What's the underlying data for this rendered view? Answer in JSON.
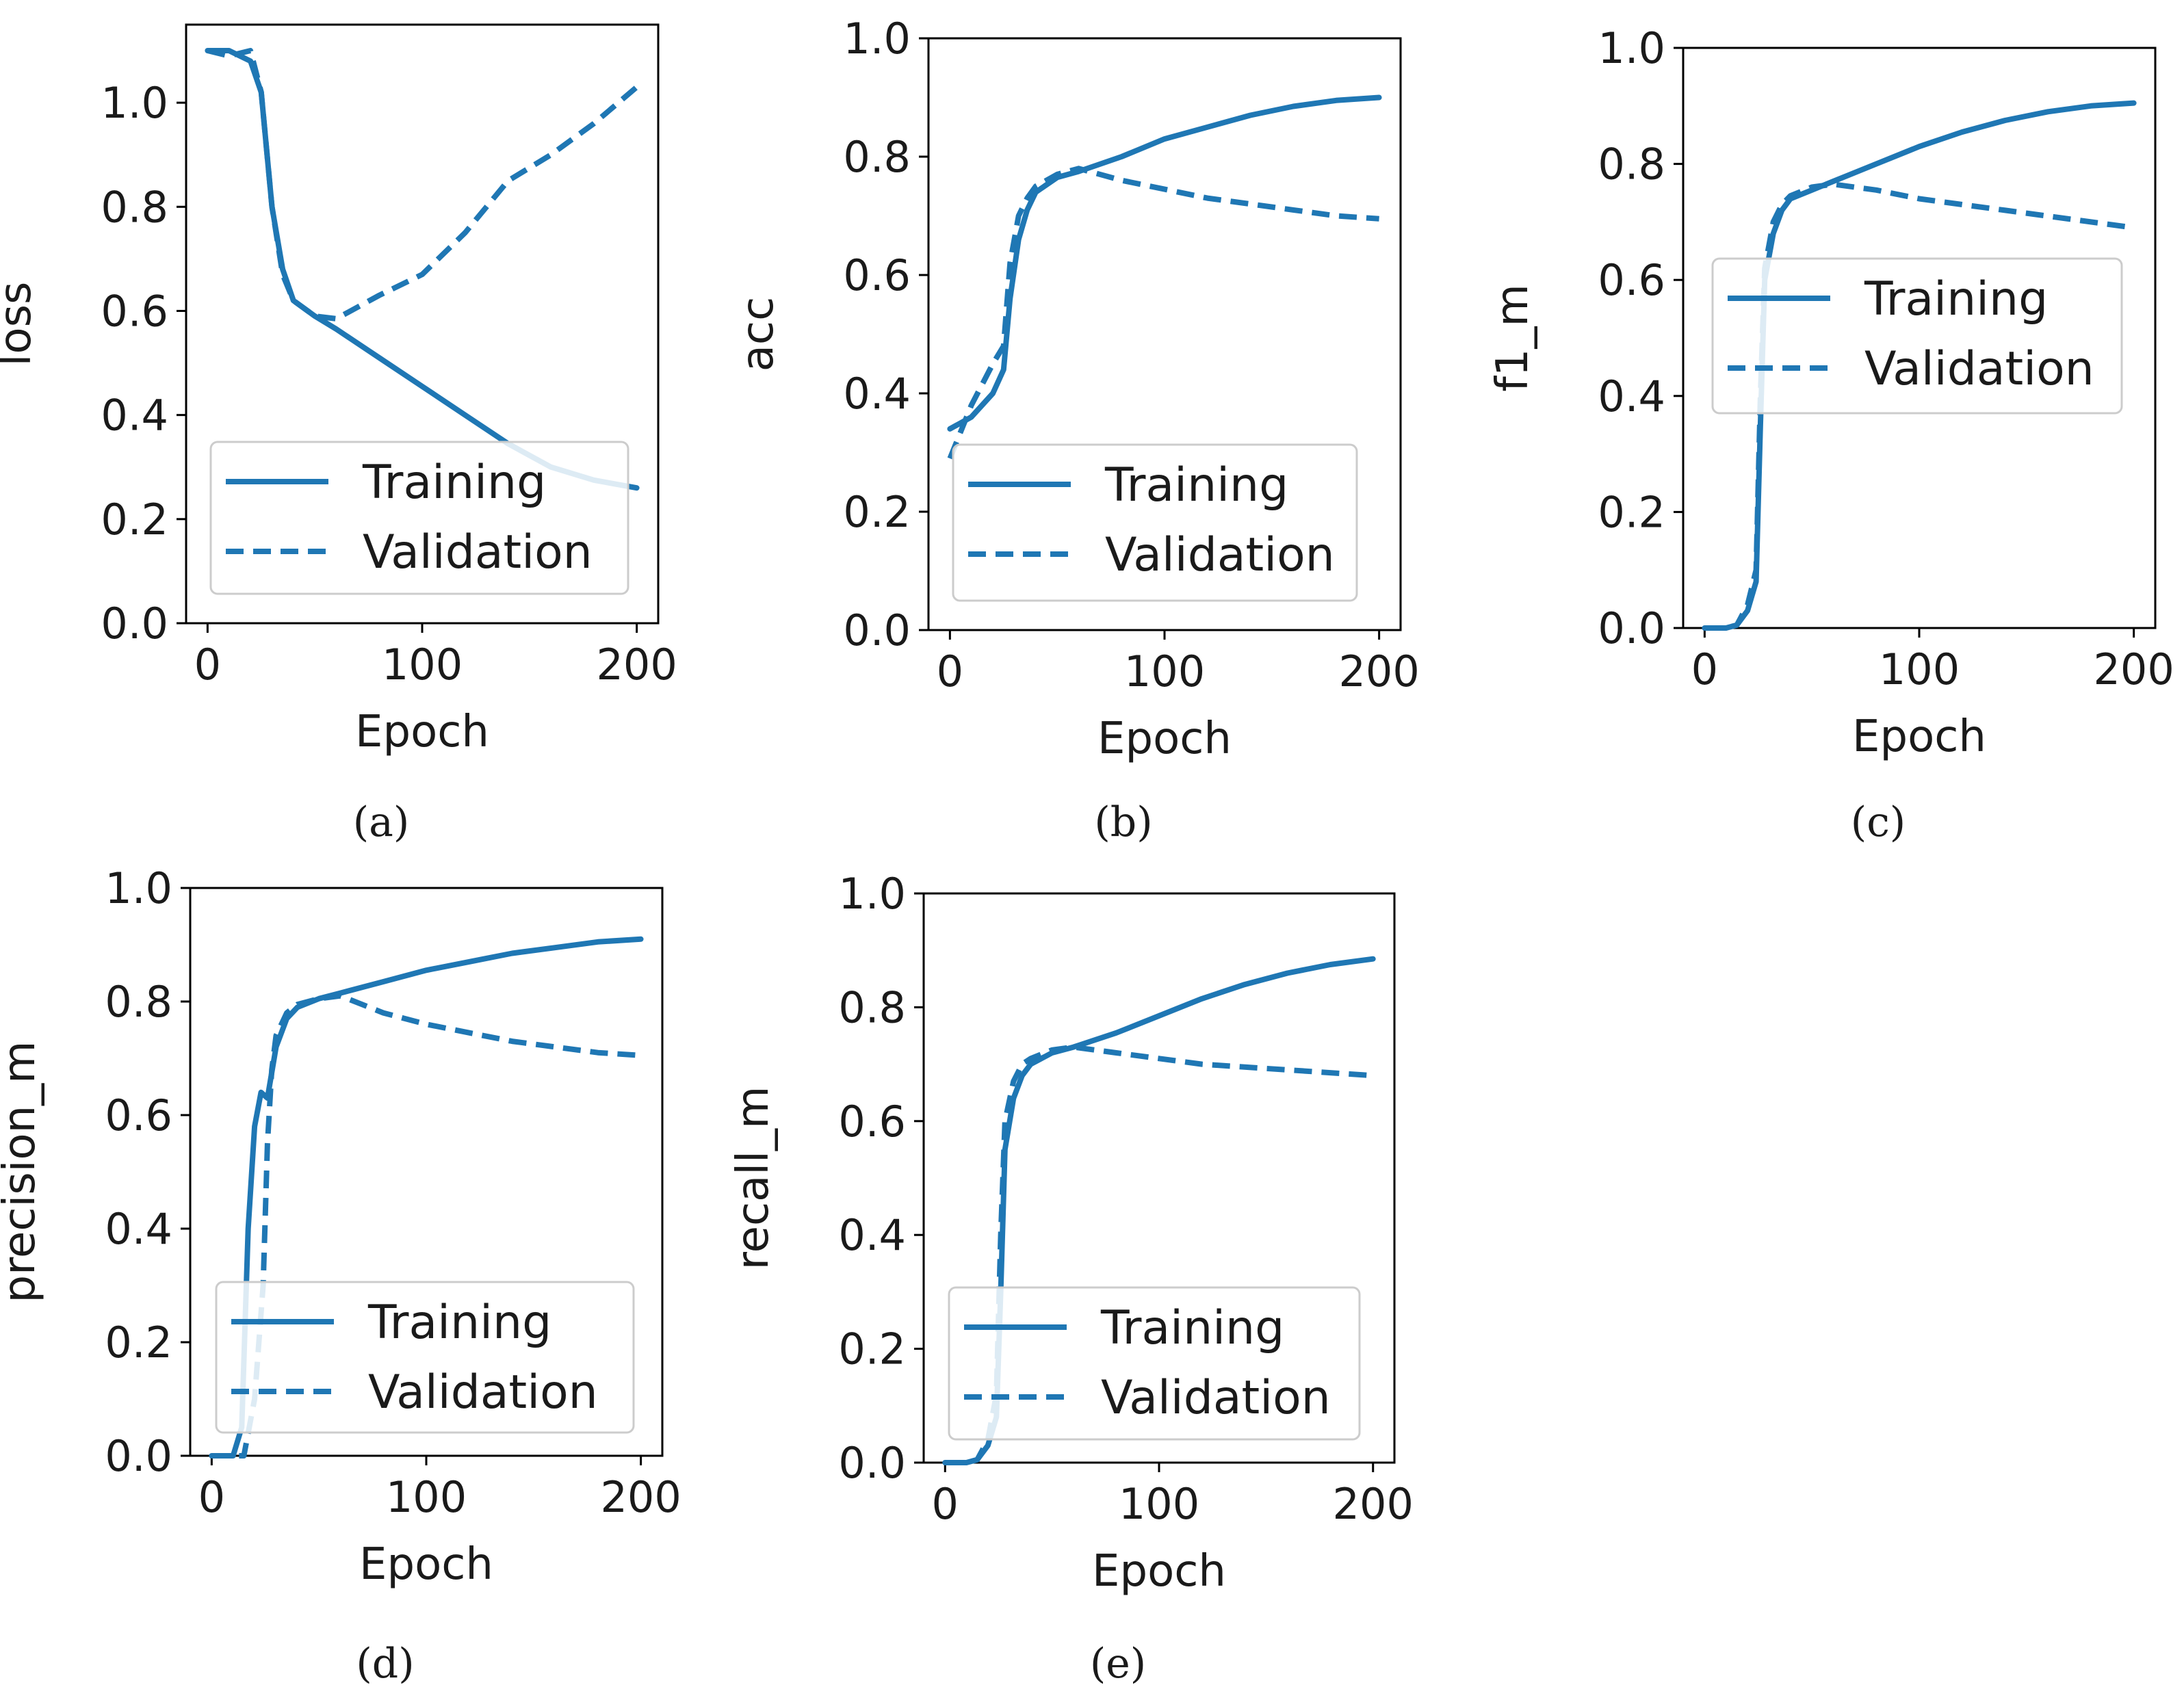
{
  "colors": {
    "series": "#1f77b4",
    "axis": "#000000",
    "legend_border": "#cccccc"
  },
  "chart_data": [
    {
      "panel": "a",
      "type": "line",
      "caption": "(a)",
      "xlabel": "Epoch",
      "ylabel": "loss",
      "xlim": [
        -10,
        210
      ],
      "ylim": [
        0.0,
        1.15
      ],
      "xticks": [
        0,
        100,
        200
      ],
      "yticks": [
        0.0,
        0.2,
        0.4,
        0.6,
        0.8,
        1.0
      ],
      "legend": "lower-right",
      "grid": false,
      "series": [
        {
          "name": "Training",
          "style": "solid",
          "x": [
            0,
            10,
            20,
            25,
            30,
            35,
            40,
            50,
            60,
            80,
            100,
            120,
            140,
            160,
            180,
            200
          ],
          "y": [
            1.1,
            1.1,
            1.08,
            1.02,
            0.8,
            0.68,
            0.62,
            0.59,
            0.565,
            0.51,
            0.455,
            0.4,
            0.345,
            0.3,
            0.275,
            0.26
          ]
        },
        {
          "name": "Validation",
          "style": "dashed",
          "x": [
            0,
            10,
            20,
            25,
            30,
            35,
            40,
            50,
            60,
            80,
            100,
            120,
            140,
            160,
            180,
            200
          ],
          "y": [
            1.1,
            1.09,
            1.1,
            1.02,
            0.8,
            0.67,
            0.62,
            0.59,
            0.585,
            0.63,
            0.67,
            0.75,
            0.85,
            0.9,
            0.96,
            1.03
          ]
        }
      ]
    },
    {
      "panel": "b",
      "type": "line",
      "caption": "(b)",
      "xlabel": "Epoch",
      "ylabel": "acc",
      "xlim": [
        -10,
        210
      ],
      "ylim": [
        0.0,
        1.0
      ],
      "xticks": [
        0,
        100,
        200
      ],
      "yticks": [
        0.0,
        0.2,
        0.4,
        0.6,
        0.8,
        1.0
      ],
      "legend": "lower-right",
      "grid": false,
      "series": [
        {
          "name": "Training",
          "style": "solid",
          "x": [
            0,
            10,
            20,
            25,
            28,
            32,
            36,
            40,
            50,
            60,
            80,
            100,
            120,
            140,
            160,
            180,
            200
          ],
          "y": [
            0.34,
            0.36,
            0.4,
            0.44,
            0.56,
            0.66,
            0.71,
            0.74,
            0.765,
            0.775,
            0.8,
            0.83,
            0.85,
            0.87,
            0.885,
            0.895,
            0.9
          ]
        },
        {
          "name": "Validation",
          "style": "dashed",
          "x": [
            0,
            10,
            20,
            25,
            28,
            32,
            36,
            40,
            50,
            60,
            80,
            100,
            120,
            140,
            160,
            180,
            200
          ],
          "y": [
            0.29,
            0.38,
            0.45,
            0.48,
            0.62,
            0.7,
            0.73,
            0.75,
            0.77,
            0.78,
            0.76,
            0.745,
            0.73,
            0.72,
            0.71,
            0.7,
            0.695
          ]
        }
      ]
    },
    {
      "panel": "c",
      "type": "line",
      "caption": "(c)",
      "xlabel": "Epoch",
      "ylabel": "f1_m",
      "xlim": [
        -10,
        210
      ],
      "ylim": [
        0.0,
        1.0
      ],
      "xticks": [
        0,
        100,
        200
      ],
      "yticks": [
        0.0,
        0.2,
        0.4,
        0.6,
        0.8,
        1.0
      ],
      "legend": "upper-right",
      "grid": false,
      "series": [
        {
          "name": "Training",
          "style": "solid",
          "x": [
            0,
            10,
            15,
            20,
            24,
            26,
            28,
            32,
            36,
            40,
            50,
            60,
            80,
            100,
            120,
            140,
            160,
            180,
            200
          ],
          "y": [
            0.0,
            0.0,
            0.005,
            0.03,
            0.08,
            0.35,
            0.6,
            0.68,
            0.72,
            0.74,
            0.755,
            0.77,
            0.8,
            0.83,
            0.855,
            0.875,
            0.89,
            0.9,
            0.905
          ]
        },
        {
          "name": "Validation",
          "style": "dashed",
          "x": [
            0,
            10,
            15,
            20,
            24,
            26,
            28,
            32,
            36,
            40,
            50,
            60,
            80,
            100,
            120,
            140,
            160,
            180,
            200
          ],
          "y": [
            0.0,
            0.0,
            0.005,
            0.04,
            0.1,
            0.4,
            0.62,
            0.7,
            0.73,
            0.745,
            0.76,
            0.765,
            0.755,
            0.74,
            0.73,
            0.72,
            0.71,
            0.7,
            0.69
          ]
        }
      ]
    },
    {
      "panel": "d",
      "type": "line",
      "caption": "(d)",
      "xlabel": "Epoch",
      "ylabel": "precision_m",
      "xlim": [
        -10,
        210
      ],
      "ylim": [
        0.0,
        1.0
      ],
      "xticks": [
        0,
        100,
        200
      ],
      "yticks": [
        0.0,
        0.2,
        0.4,
        0.6,
        0.8,
        1.0
      ],
      "legend": "lower-right",
      "grid": false,
      "series": [
        {
          "name": "Training",
          "style": "solid",
          "x": [
            0,
            10,
            14,
            17,
            20,
            23,
            26,
            30,
            35,
            40,
            50,
            60,
            80,
            100,
            120,
            140,
            160,
            180,
            200
          ],
          "y": [
            0.0,
            0.0,
            0.05,
            0.4,
            0.58,
            0.64,
            0.63,
            0.72,
            0.77,
            0.79,
            0.805,
            0.815,
            0.835,
            0.855,
            0.87,
            0.885,
            0.895,
            0.905,
            0.91
          ]
        },
        {
          "name": "Validation",
          "style": "dashed",
          "x": [
            0,
            10,
            15,
            20,
            24,
            26,
            28,
            30,
            35,
            40,
            50,
            60,
            80,
            100,
            120,
            140,
            160,
            180,
            200
          ],
          "y": [
            0.0,
            0.0,
            0.0,
            0.1,
            0.3,
            0.55,
            0.68,
            0.74,
            0.78,
            0.795,
            0.805,
            0.81,
            0.78,
            0.76,
            0.745,
            0.73,
            0.72,
            0.71,
            0.705
          ]
        }
      ]
    },
    {
      "panel": "e",
      "type": "line",
      "caption": "(e)",
      "xlabel": "Epoch",
      "ylabel": "recall_m",
      "xlim": [
        -10,
        210
      ],
      "ylim": [
        0.0,
        1.0
      ],
      "xticks": [
        0,
        100,
        200
      ],
      "yticks": [
        0.0,
        0.2,
        0.4,
        0.6,
        0.8,
        1.0
      ],
      "legend": "lower-right",
      "grid": false,
      "series": [
        {
          "name": "Training",
          "style": "solid",
          "x": [
            0,
            10,
            15,
            20,
            24,
            26,
            28,
            32,
            36,
            40,
            50,
            60,
            80,
            100,
            120,
            140,
            160,
            180,
            200
          ],
          "y": [
            0.0,
            0.0,
            0.005,
            0.03,
            0.08,
            0.3,
            0.55,
            0.64,
            0.68,
            0.7,
            0.72,
            0.73,
            0.755,
            0.785,
            0.815,
            0.84,
            0.86,
            0.875,
            0.885
          ]
        },
        {
          "name": "Validation",
          "style": "dashed",
          "x": [
            0,
            10,
            15,
            20,
            24,
            26,
            28,
            32,
            36,
            40,
            50,
            60,
            80,
            100,
            120,
            140,
            160,
            180,
            200
          ],
          "y": [
            0.0,
            0.0,
            0.005,
            0.04,
            0.12,
            0.4,
            0.6,
            0.67,
            0.7,
            0.71,
            0.725,
            0.73,
            0.72,
            0.71,
            0.7,
            0.695,
            0.69,
            0.685,
            0.68
          ]
        }
      ]
    }
  ]
}
